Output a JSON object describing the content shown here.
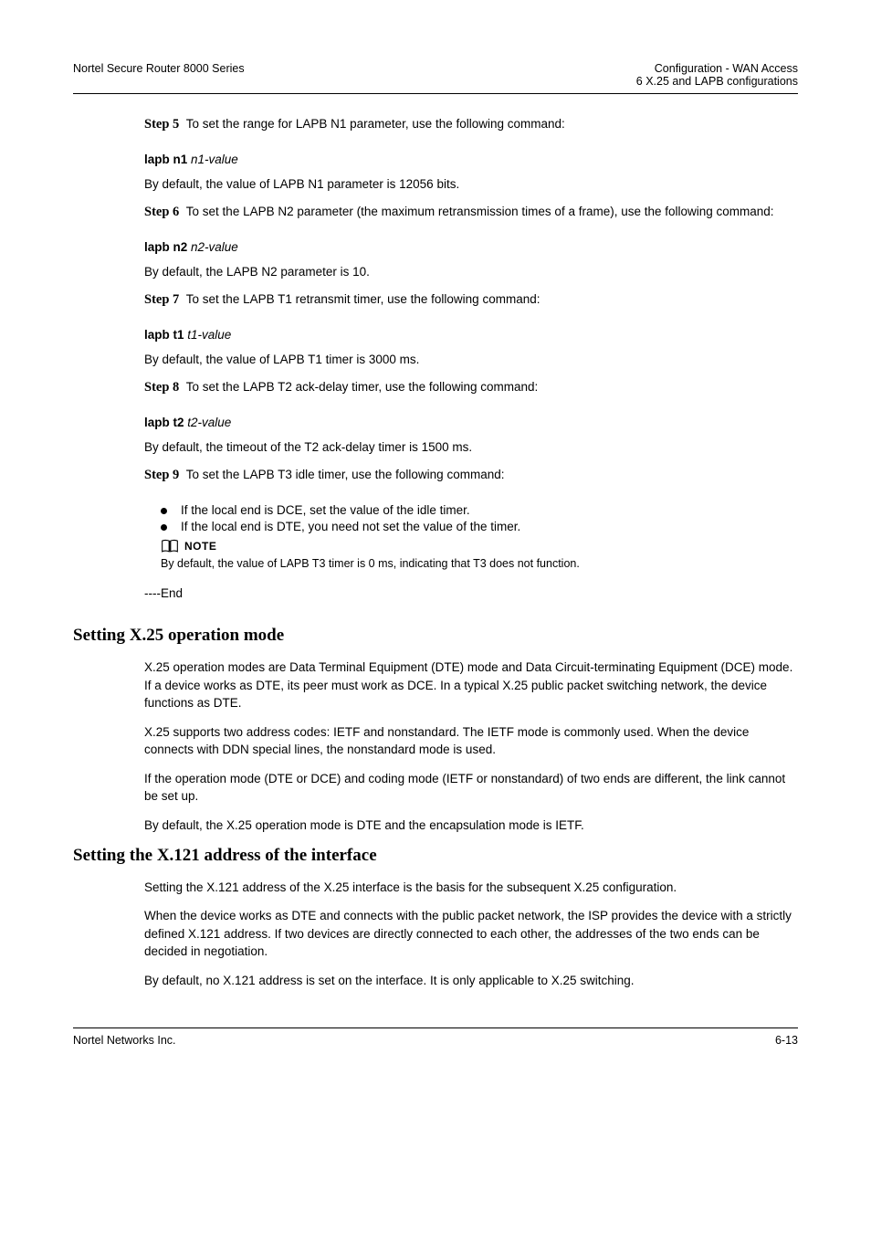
{
  "header": {
    "left": "Nortel Secure Router 8000 Series",
    "right_top": "Configuration - WAN Access",
    "right_bottom": "6 X.25 and LAPB configurations"
  },
  "steps": [
    {
      "label": "Step 5",
      "first": "To set the range for LAPB N1 parameter, use the following command:",
      "cmd_segments": [
        {
          "t": "lapb n1",
          "b": true,
          "i": false
        },
        {
          "t": " ",
          "b": false,
          "i": false
        },
        {
          "t": "n1-value",
          "b": false,
          "i": true
        }
      ],
      "note": "By default, the value of LAPB N1 parameter is 12056 bits."
    },
    {
      "label": "Step 6",
      "first": "To set the LAPB N2 parameter (the maximum retransmission times of a frame), use the following command:",
      "cmd_segments": [
        {
          "t": "lapb n2",
          "b": true,
          "i": false
        },
        {
          "t": " ",
          "b": false,
          "i": false
        },
        {
          "t": "n2-value",
          "b": false,
          "i": true
        }
      ],
      "note": "By default, the LAPB N2 parameter is 10."
    },
    {
      "label": "Step 7",
      "first": "To set the LAPB T1 retransmit timer, use the following command:",
      "cmd_segments": [
        {
          "t": "lapb t1",
          "b": true,
          "i": false
        },
        {
          "t": " ",
          "b": false,
          "i": false
        },
        {
          "t": "t1-value",
          "b": false,
          "i": true
        }
      ],
      "note": "By default, the value of LAPB T1 timer is 3000 ms."
    },
    {
      "label": "Step 8",
      "first": "To set the LAPB T2 ack-delay timer, use the following command:",
      "cmd_segments": [
        {
          "t": "lapb t2",
          "b": true,
          "i": false
        },
        {
          "t": " ",
          "b": false,
          "i": false
        },
        {
          "t": "t2-value",
          "b": false,
          "i": true
        }
      ],
      "note": "By default, the timeout of the T2 ack-delay timer is 1500 ms."
    },
    {
      "label": "Step 9",
      "first": "To set the LAPB T3 idle timer, use the following command:",
      "cmd_segments": [],
      "note": ""
    }
  ],
  "step9_bullets": [
    "If the local end is DCE, set the value of the idle timer.",
    "If the local end is DTE, you need not set the value of the timer."
  ],
  "note_block": {
    "icon_label": "NOTE",
    "text": "By default, the value of LAPB T3 timer is 0 ms, indicating that T3 does not function."
  },
  "end_marker": "----End",
  "sections": [
    {
      "heading": "Setting X.25 operation mode",
      "paragraphs": [
        "X.25 operation modes are Data Terminal Equipment (DTE) mode and Data Circuit-terminating Equipment (DCE) mode. If a device works as DTE, its peer must work as DCE. In a typical X.25 public packet switching network, the device functions as DTE.",
        "X.25 supports two address codes: IETF and nonstandard. The IETF mode is commonly used. When the device connects with DDN special lines, the nonstandard mode is used.",
        "If the operation mode (DTE or DCE) and coding mode (IETF or nonstandard) of two ends are different, the link cannot be set up.",
        "By default, the X.25 operation mode is DTE and the encapsulation mode is IETF."
      ]
    },
    {
      "heading": "Setting the X.121 address of the interface",
      "paragraphs": [
        "Setting the X.121 address of the X.25 interface is the basis for the subsequent X.25 configuration.",
        "When the device works as DTE and connects with the public packet network, the ISP provides the device with a strictly defined X.121 address. If two devices are directly connected to each other, the addresses of the two ends can be decided in negotiation.",
        "By default, no X.121 address is set on the interface. It is only applicable to X.25 switching."
      ]
    }
  ],
  "footer": {
    "left": "Nortel Networks Inc.",
    "right": "6-13"
  },
  "colors": {
    "text": "#000000",
    "bg": "#ffffff",
    "rule": "#000000"
  }
}
